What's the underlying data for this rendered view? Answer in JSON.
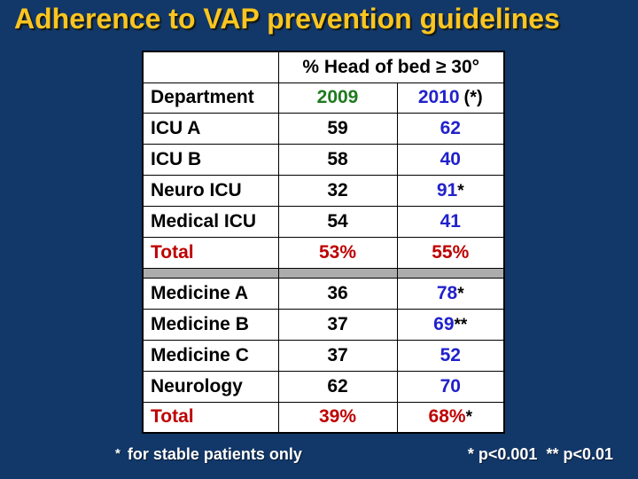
{
  "slide": {
    "title": "Adherence to VAP prevention guidelines"
  },
  "table": {
    "merged_header": "% Head of bed ≥ 30°",
    "department_header": "Department",
    "year_2009": "2009",
    "year_2010": "2010",
    "year_2010_suffix": "(*)",
    "rows": [
      {
        "dept": "ICU A",
        "v2009": "59",
        "v2010": "62",
        "mark": ""
      },
      {
        "dept": "ICU B",
        "v2009": "58",
        "v2010": "40",
        "mark": ""
      },
      {
        "dept": "Neuro ICU",
        "v2009": "32",
        "v2010": "91",
        "mark": "*"
      },
      {
        "dept": "Medical ICU",
        "v2009": "54",
        "v2010": "41",
        "mark": ""
      },
      {
        "dept": "Total",
        "v2009": "53%",
        "v2010": "55%",
        "mark": ""
      },
      {
        "dept": "Medicine A",
        "v2009": "36",
        "v2010": "78",
        "mark": "*"
      },
      {
        "dept": "Medicine B",
        "v2009": "37",
        "v2010": "69",
        "mark": "**"
      },
      {
        "dept": "Medicine C",
        "v2009": "37",
        "v2010": "52",
        "mark": ""
      },
      {
        "dept": "Neurology",
        "v2009": "62",
        "v2010": "70",
        "mark": ""
      },
      {
        "dept": "Total",
        "v2009": "39%",
        "v2010": "68%",
        "mark": "*"
      }
    ]
  },
  "footnotes": {
    "left_marker": "*",
    "left_text": "for stable patients only",
    "right": "* p<0.001  ** p<0.01"
  },
  "colors": {
    "background": "#12386A",
    "title": "#FBC520",
    "green2009": "#1E7A1E",
    "blue2010": "#2121CC",
    "redtotal": "#BE0000",
    "separator": "#ACACAC",
    "tableBg": "#FFFFFF",
    "footnote": "#FFFFFF"
  }
}
